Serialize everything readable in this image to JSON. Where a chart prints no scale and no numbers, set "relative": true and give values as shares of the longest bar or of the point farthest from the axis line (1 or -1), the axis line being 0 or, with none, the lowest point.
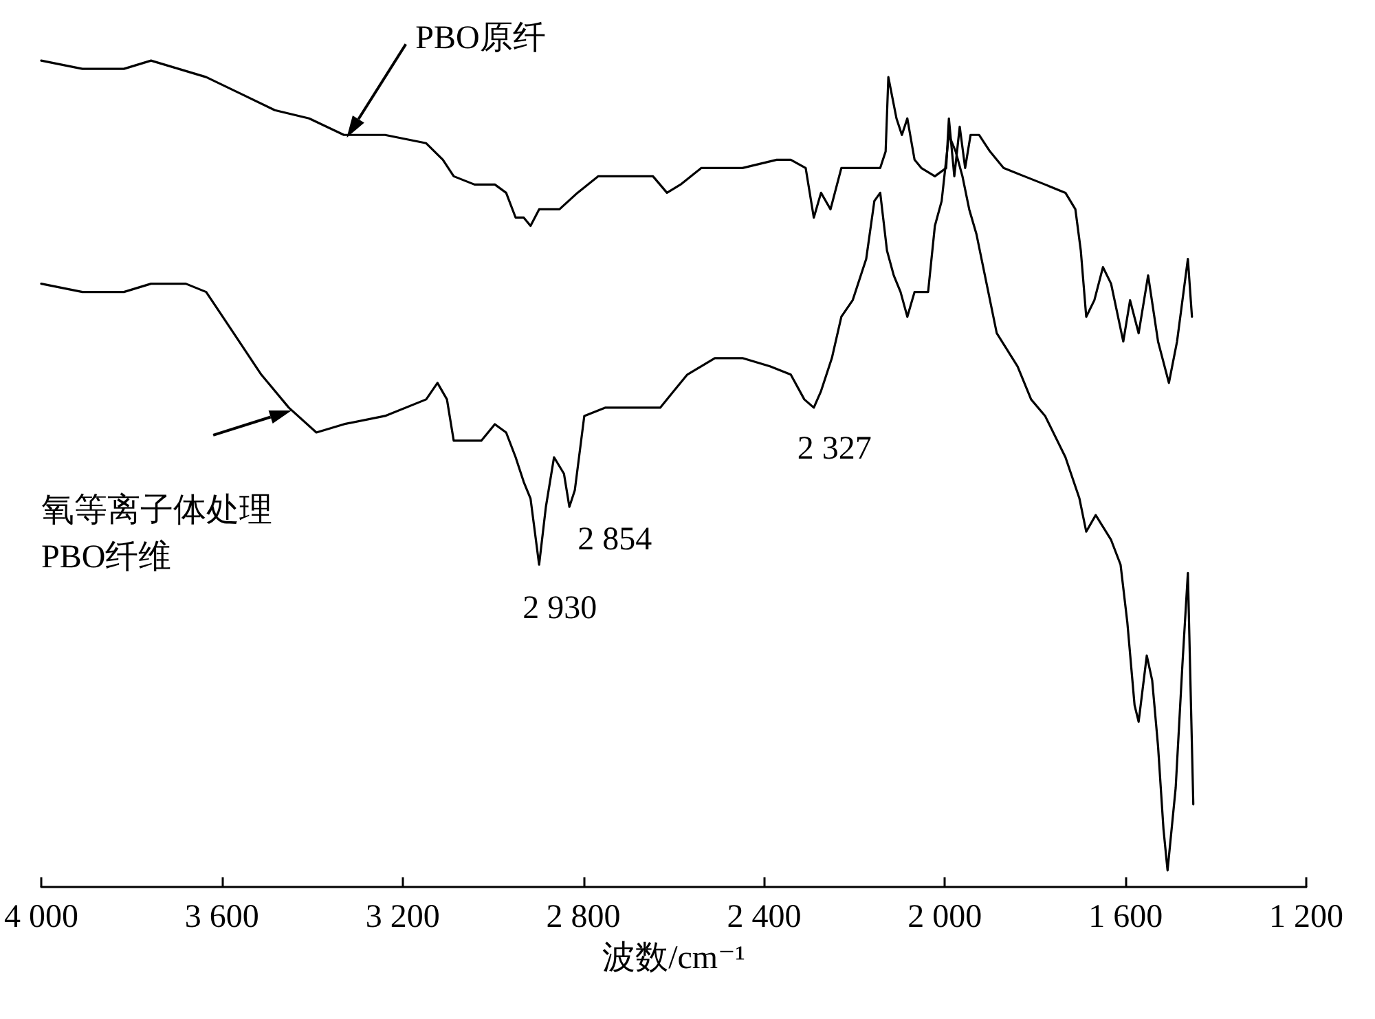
{
  "chart_data": {
    "type": "line",
    "relative": true,
    "xlabel": "波数/cm⁻¹",
    "xlim": [
      4000,
      1200
    ],
    "xticks": [
      {
        "value": 4000,
        "label": "4 000"
      },
      {
        "value": 3600,
        "label": "3 600"
      },
      {
        "value": 3200,
        "label": "3 200"
      },
      {
        "value": 2800,
        "label": "2 800"
      },
      {
        "value": 2400,
        "label": "2 400"
      },
      {
        "value": 2000,
        "label": "2 000"
      },
      {
        "value": 1600,
        "label": "1 600"
      },
      {
        "value": 1200,
        "label": "1 200"
      }
    ],
    "tick_labels": "x",
    "marker": "none",
    "line_style": "solid",
    "series": [
      {
        "name": "PBO原纤",
        "color": "#000000",
        "x": [
          4000,
          3909,
          3817,
          3757,
          3696,
          3635,
          3559,
          3483,
          3407,
          3330,
          3239,
          3148,
          3111,
          3087,
          3041,
          2996,
          2971,
          2950,
          2932,
          2917,
          2898,
          2874,
          2853,
          2813,
          2767,
          2691,
          2646,
          2615,
          2585,
          2539,
          2448,
          2372,
          2341,
          2308,
          2290,
          2274,
          2253,
          2229,
          2174,
          2143,
          2131,
          2125,
          2107,
          2095,
          2083,
          2067,
          2052,
          2022,
          1997,
          1991,
          1979,
          1967,
          1955,
          1943,
          1924,
          1900,
          1870,
          1824,
          1778,
          1733,
          1711,
          1699,
          1687,
          1669,
          1650,
          1632,
          1605,
          1590,
          1571,
          1550,
          1528,
          1504,
          1486,
          1462,
          1453
        ],
        "values": [
          1.0,
          0.99,
          0.99,
          1.0,
          0.99,
          0.98,
          0.96,
          0.94,
          0.93,
          0.91,
          0.91,
          0.9,
          0.88,
          0.86,
          0.85,
          0.85,
          0.84,
          0.81,
          0.81,
          0.8,
          0.82,
          0.82,
          0.82,
          0.84,
          0.86,
          0.86,
          0.86,
          0.84,
          0.85,
          0.87,
          0.87,
          0.88,
          0.88,
          0.87,
          0.81,
          0.84,
          0.82,
          0.87,
          0.87,
          0.87,
          0.89,
          0.98,
          0.93,
          0.91,
          0.93,
          0.88,
          0.87,
          0.86,
          0.87,
          0.93,
          0.86,
          0.92,
          0.87,
          0.91,
          0.91,
          0.89,
          0.87,
          0.86,
          0.85,
          0.84,
          0.82,
          0.77,
          0.69,
          0.71,
          0.75,
          0.73,
          0.66,
          0.71,
          0.67,
          0.74,
          0.66,
          0.61,
          0.66,
          0.76,
          0.69
        ]
      },
      {
        "name": "氧等离子体处理\nPBO纤维",
        "color": "#000000",
        "x": [
          4000,
          3909,
          3817,
          3757,
          3711,
          3680,
          3635,
          3574,
          3513,
          3452,
          3391,
          3330,
          3239,
          3148,
          3123,
          3102,
          3087,
          3057,
          3026,
          2996,
          2971,
          2950,
          2932,
          2917,
          2898,
          2883,
          2865,
          2843,
          2831,
          2819,
          2798,
          2752,
          2691,
          2630,
          2600,
          2570,
          2509,
          2448,
          2387,
          2341,
          2311,
          2290,
          2274,
          2250,
          2229,
          2204,
          2174,
          2156,
          2143,
          2128,
          2113,
          2098,
          2083,
          2067,
          2037,
          2022,
          2007,
          1991,
          1976,
          1961,
          1946,
          1930,
          1915,
          1885,
          1839,
          1809,
          1778,
          1733,
          1702,
          1687,
          1666,
          1632,
          1611,
          1596,
          1580,
          1571,
          1553,
          1541,
          1528,
          1516,
          1507,
          1489,
          1474,
          1462,
          1450
        ],
        "values": [
          0.73,
          0.72,
          0.72,
          0.73,
          0.73,
          0.73,
          0.72,
          0.67,
          0.62,
          0.58,
          0.55,
          0.56,
          0.57,
          0.59,
          0.61,
          0.59,
          0.54,
          0.54,
          0.54,
          0.56,
          0.55,
          0.52,
          0.49,
          0.47,
          0.39,
          0.46,
          0.52,
          0.5,
          0.46,
          0.48,
          0.57,
          0.58,
          0.58,
          0.58,
          0.6,
          0.62,
          0.64,
          0.64,
          0.63,
          0.62,
          0.59,
          0.58,
          0.6,
          0.64,
          0.69,
          0.71,
          0.76,
          0.83,
          0.84,
          0.77,
          0.74,
          0.72,
          0.69,
          0.72,
          0.72,
          0.8,
          0.83,
          0.91,
          0.89,
          0.86,
          0.82,
          0.79,
          0.75,
          0.67,
          0.63,
          0.59,
          0.57,
          0.52,
          0.47,
          0.43,
          0.45,
          0.42,
          0.39,
          0.32,
          0.22,
          0.2,
          0.28,
          0.25,
          0.17,
          0.07,
          0.02,
          0.12,
          0.27,
          0.38,
          0.1
        ]
      }
    ],
    "annotations": [
      {
        "text": "2 930",
        "x": 2898,
        "y": 0.39
      },
      {
        "text": "2 854",
        "x": 2831,
        "y": 0.46
      },
      {
        "text": "2 327",
        "x": 2290,
        "y": 0.58
      }
    ]
  }
}
